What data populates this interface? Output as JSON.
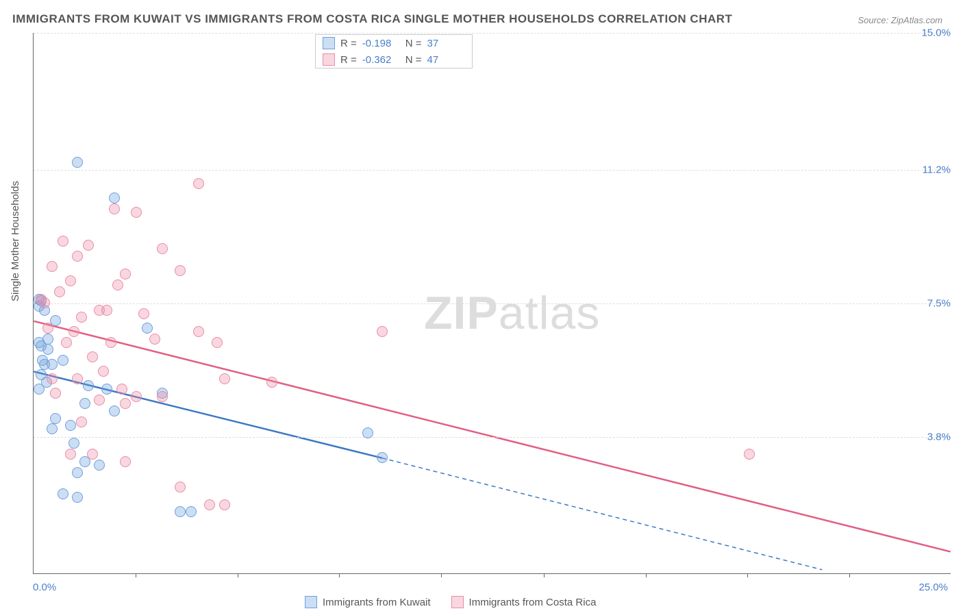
{
  "title": "IMMIGRANTS FROM KUWAIT VS IMMIGRANTS FROM COSTA RICA SINGLE MOTHER HOUSEHOLDS CORRELATION CHART",
  "source": "Source: ZipAtlas.com",
  "y_axis_label": "Single Mother Households",
  "watermark": {
    "bold": "ZIP",
    "light": "atlas"
  },
  "x_origin_label": "0.0%",
  "x_max_label": "25.0%",
  "xlim": [
    0,
    25
  ],
  "ylim": [
    0,
    15
  ],
  "y_gridlines": [
    {
      "value": 3.8,
      "label": "3.8%"
    },
    {
      "value": 7.5,
      "label": "7.5%"
    },
    {
      "value": 11.2,
      "label": "11.2%"
    },
    {
      "value": 15.0,
      "label": "15.0%"
    }
  ],
  "x_ticks": [
    2.78,
    5.56,
    8.33,
    11.11,
    13.89,
    16.67,
    19.44,
    22.22
  ],
  "series": [
    {
      "name": "Immigrants from Kuwait",
      "fill": "rgba(110,160,220,0.35)",
      "stroke": "#6ea0dc",
      "line_color": "#3b78c4",
      "R": "-0.198",
      "N": "37",
      "regression": {
        "x1": 0,
        "y1": 5.6,
        "x2_solid": 9.5,
        "y2_solid": 3.2,
        "x2_dash": 21.5,
        "y2_dash": 0.1
      },
      "points": [
        [
          0.15,
          7.6
        ],
        [
          0.15,
          7.4
        ],
        [
          0.2,
          7.55
        ],
        [
          0.3,
          7.3
        ],
        [
          0.15,
          6.4
        ],
        [
          0.2,
          6.3
        ],
        [
          0.25,
          5.9
        ],
        [
          0.4,
          6.2
        ],
        [
          0.3,
          5.8
        ],
        [
          0.2,
          5.5
        ],
        [
          0.35,
          5.3
        ],
        [
          0.15,
          5.1
        ],
        [
          0.5,
          5.8
        ],
        [
          1.2,
          11.4
        ],
        [
          1.5,
          5.2
        ],
        [
          1.4,
          4.7
        ],
        [
          1.0,
          4.1
        ],
        [
          1.1,
          3.6
        ],
        [
          1.4,
          3.1
        ],
        [
          1.2,
          2.8
        ],
        [
          0.8,
          2.2
        ],
        [
          1.2,
          2.1
        ],
        [
          1.8,
          3.0
        ],
        [
          2.2,
          10.4
        ],
        [
          3.1,
          6.8
        ],
        [
          3.5,
          5.0
        ],
        [
          2.2,
          4.5
        ],
        [
          2.0,
          5.1
        ],
        [
          4.0,
          1.7
        ],
        [
          4.3,
          1.7
        ],
        [
          9.1,
          3.9
        ],
        [
          9.5,
          3.2
        ],
        [
          0.6,
          4.3
        ],
        [
          0.5,
          4.0
        ],
        [
          0.8,
          5.9
        ],
        [
          0.4,
          6.5
        ],
        [
          0.6,
          7.0
        ]
      ]
    },
    {
      "name": "Immigrants from Costa Rica",
      "fill": "rgba(235,140,165,0.35)",
      "stroke": "#eb8ca5",
      "line_color": "#e25e82",
      "R": "-0.362",
      "N": "47",
      "regression": {
        "x1": 0,
        "y1": 7.0,
        "x2_solid": 25,
        "y2_solid": 0.6,
        "x2_dash": 25,
        "y2_dash": 0.6
      },
      "points": [
        [
          0.2,
          7.6
        ],
        [
          0.3,
          7.5
        ],
        [
          0.5,
          8.5
        ],
        [
          0.8,
          9.2
        ],
        [
          1.2,
          8.8
        ],
        [
          1.0,
          8.1
        ],
        [
          1.5,
          9.1
        ],
        [
          2.2,
          10.1
        ],
        [
          2.8,
          10.0
        ],
        [
          2.5,
          8.3
        ],
        [
          3.5,
          9.0
        ],
        [
          4.5,
          10.8
        ],
        [
          4.0,
          8.4
        ],
        [
          1.8,
          7.3
        ],
        [
          1.3,
          7.1
        ],
        [
          0.9,
          6.4
        ],
        [
          1.6,
          6.0
        ],
        [
          2.1,
          6.4
        ],
        [
          2.8,
          4.9
        ],
        [
          2.4,
          5.1
        ],
        [
          3.3,
          6.5
        ],
        [
          4.5,
          6.7
        ],
        [
          5.0,
          6.4
        ],
        [
          5.2,
          5.4
        ],
        [
          6.5,
          5.3
        ],
        [
          9.5,
          6.7
        ],
        [
          1.2,
          5.4
        ],
        [
          1.8,
          4.8
        ],
        [
          2.5,
          3.1
        ],
        [
          2.5,
          4.7
        ],
        [
          3.5,
          4.9
        ],
        [
          4.0,
          2.4
        ],
        [
          4.8,
          1.9
        ],
        [
          5.2,
          1.9
        ],
        [
          1.0,
          3.3
        ],
        [
          1.6,
          3.3
        ],
        [
          19.5,
          3.3
        ],
        [
          0.5,
          5.4
        ],
        [
          0.7,
          7.8
        ],
        [
          1.3,
          4.2
        ],
        [
          2.0,
          7.3
        ],
        [
          0.4,
          6.8
        ],
        [
          0.6,
          5.0
        ],
        [
          1.1,
          6.7
        ],
        [
          1.9,
          5.6
        ],
        [
          3.0,
          7.2
        ],
        [
          2.3,
          8.0
        ]
      ]
    }
  ],
  "legend_labels": {
    "R_prefix": "R =",
    "N_prefix": "N ="
  },
  "colors": {
    "title": "#555555",
    "axis_text": "#4a7ec9",
    "grid": "#dddddd"
  }
}
